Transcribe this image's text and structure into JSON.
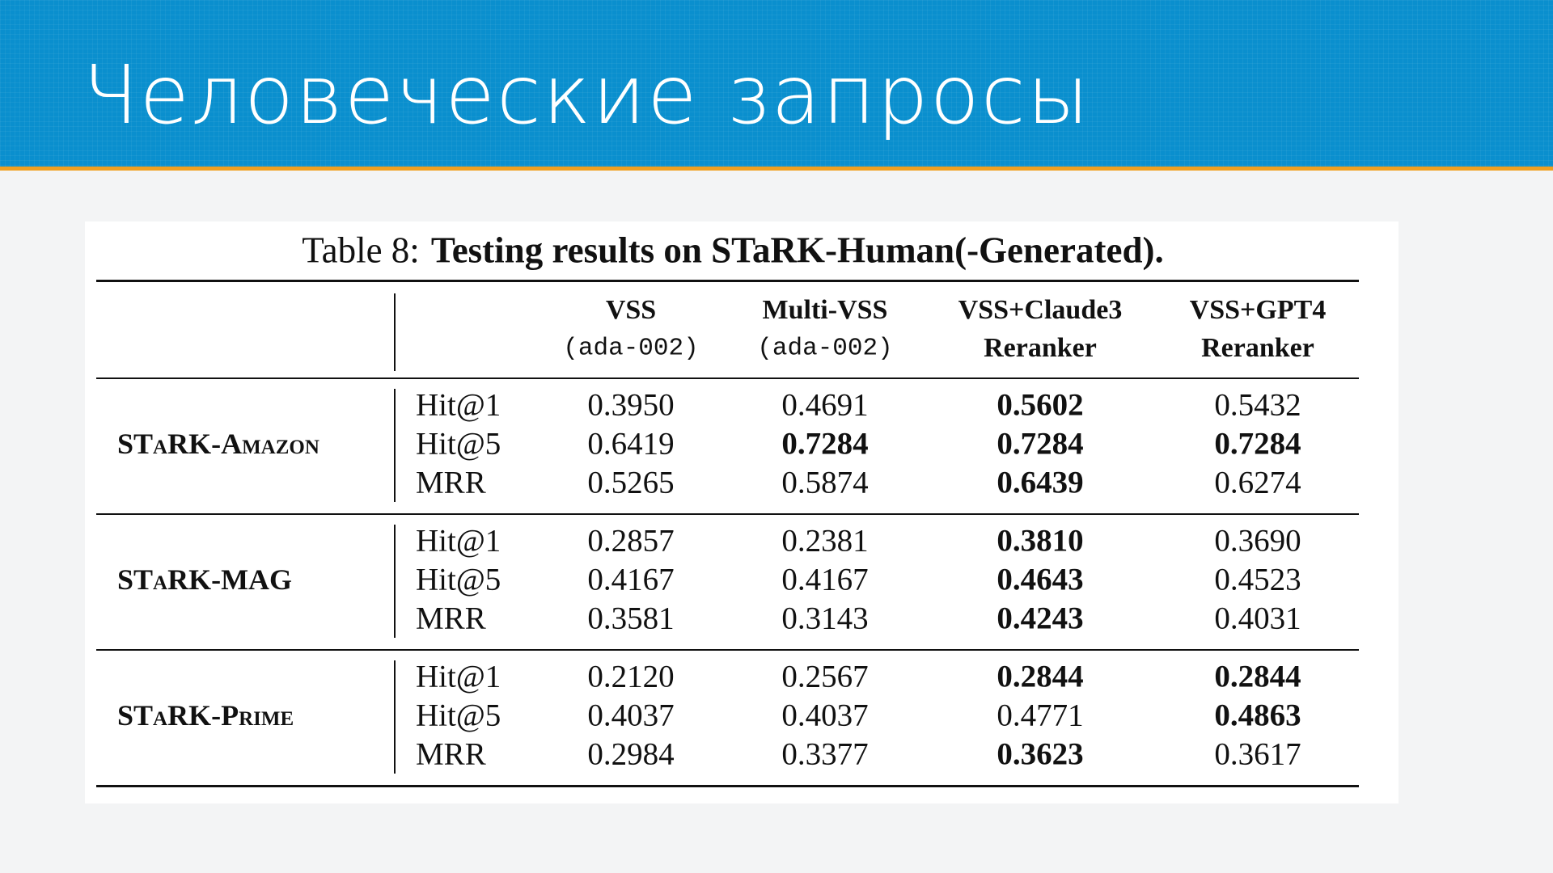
{
  "header": {
    "title": "Человеческие запросы"
  },
  "table": {
    "caption": {
      "label": "Table 8:",
      "text": "Testing results on STaRK-Human(-Generated)."
    },
    "columns": [
      {
        "name": "VSS",
        "sub": "(ada-002)",
        "sub_style": "mono"
      },
      {
        "name": "Multi-VSS",
        "sub": "(ada-002)",
        "sub_style": "mono"
      },
      {
        "name": "VSS+Claude3",
        "sub": "Reranker",
        "sub_style": "bold"
      },
      {
        "name": "VSS+GPT4",
        "sub": "Reranker",
        "sub_style": "bold"
      }
    ],
    "groups": [
      {
        "name": "STaRK-Amazon",
        "rows": [
          {
            "metric": "Hit@1",
            "values": [
              "0.3950",
              "0.4691",
              "0.5602",
              "0.5432"
            ],
            "bold": [
              false,
              false,
              true,
              false
            ]
          },
          {
            "metric": "Hit@5",
            "values": [
              "0.6419",
              "0.7284",
              "0.7284",
              "0.7284"
            ],
            "bold": [
              false,
              true,
              true,
              true
            ]
          },
          {
            "metric": "MRR",
            "values": [
              "0.5265",
              "0.5874",
              "0.6439",
              "0.6274"
            ],
            "bold": [
              false,
              false,
              true,
              false
            ]
          }
        ]
      },
      {
        "name": "STaRK-MAG",
        "rows": [
          {
            "metric": "Hit@1",
            "values": [
              "0.2857",
              "0.2381",
              "0.3810",
              "0.3690"
            ],
            "bold": [
              false,
              false,
              true,
              false
            ]
          },
          {
            "metric": "Hit@5",
            "values": [
              "0.4167",
              "0.4167",
              "0.4643",
              "0.4523"
            ],
            "bold": [
              false,
              false,
              true,
              false
            ]
          },
          {
            "metric": "MRR",
            "values": [
              "0.3581",
              "0.3143",
              "0.4243",
              "0.4031"
            ],
            "bold": [
              false,
              false,
              true,
              false
            ]
          }
        ]
      },
      {
        "name": "STaRK-Prime",
        "rows": [
          {
            "metric": "Hit@1",
            "values": [
              "0.2120",
              "0.2567",
              "0.2844",
              "0.2844"
            ],
            "bold": [
              false,
              false,
              true,
              true
            ]
          },
          {
            "metric": "Hit@5",
            "values": [
              "0.4037",
              "0.4037",
              "0.4771",
              "0.4863"
            ],
            "bold": [
              false,
              false,
              false,
              true
            ]
          },
          {
            "metric": "MRR",
            "values": [
              "0.2984",
              "0.3377",
              "0.3623",
              "0.3617"
            ],
            "bold": [
              false,
              false,
              true,
              false
            ]
          }
        ]
      }
    ]
  }
}
